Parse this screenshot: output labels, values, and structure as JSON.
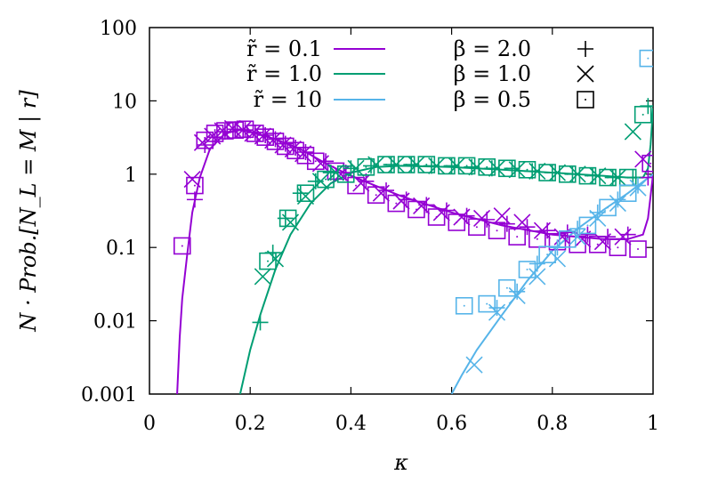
{
  "chart_data": {
    "type": "scatter",
    "xlabel": "κ",
    "ylabel": "N · Prob.[N_L = M | r]",
    "xlim": [
      0,
      1
    ],
    "ylim": [
      0.001,
      100
    ],
    "yscale": "log",
    "x_ticks": [
      "0",
      "0.2",
      "0.4",
      "0.6",
      "0.8",
      "1"
    ],
    "y_ticks": [
      "0.001",
      "0.01",
      "0.1",
      "1",
      "10",
      "100"
    ],
    "grid": false,
    "legend_placement": "top",
    "colors": {
      "r0.1": "#9400d3",
      "r1.0": "#009e73",
      "r10": "#56b4e9"
    },
    "curve_legend": [
      {
        "label": "r̃ = 0.1",
        "color": "#9400d3"
      },
      {
        "label": "r̃ = 1.0",
        "color": "#009e73"
      },
      {
        "label": "r̃ = 10",
        "color": "#56b4e9"
      }
    ],
    "marker_legend": [
      {
        "label": "β = 2.0",
        "marker": "plus"
      },
      {
        "label": "β = 1.0",
        "marker": "cross"
      },
      {
        "label": "β = 0.5",
        "marker": "square"
      }
    ],
    "curves": [
      {
        "name": "r̃ = 0.1",
        "color": "#9400d3",
        "points": [
          [
            0.055,
            0.001
          ],
          [
            0.06,
            0.006
          ],
          [
            0.065,
            0.02
          ],
          [
            0.075,
            0.08
          ],
          [
            0.085,
            0.3
          ],
          [
            0.1,
            0.9
          ],
          [
            0.12,
            2.2
          ],
          [
            0.15,
            3.6
          ],
          [
            0.18,
            4.0
          ],
          [
            0.2,
            3.8
          ],
          [
            0.25,
            3.0
          ],
          [
            0.3,
            2.2
          ],
          [
            0.35,
            1.4
          ],
          [
            0.4,
            0.95
          ],
          [
            0.5,
            0.5
          ],
          [
            0.6,
            0.3
          ],
          [
            0.7,
            0.2
          ],
          [
            0.8,
            0.15
          ],
          [
            0.9,
            0.13
          ],
          [
            0.95,
            0.13
          ],
          [
            0.98,
            0.15
          ],
          [
            0.99,
            0.25
          ],
          [
            0.995,
            0.5
          ],
          [
            1.0,
            1.0
          ]
        ]
      },
      {
        "name": "r̃ = 1.0",
        "color": "#009e73",
        "points": [
          [
            0.18,
            0.001
          ],
          [
            0.2,
            0.004
          ],
          [
            0.22,
            0.012
          ],
          [
            0.25,
            0.05
          ],
          [
            0.28,
            0.15
          ],
          [
            0.32,
            0.4
          ],
          [
            0.36,
            0.75
          ],
          [
            0.4,
            1.05
          ],
          [
            0.45,
            1.25
          ],
          [
            0.5,
            1.3
          ],
          [
            0.6,
            1.25
          ],
          [
            0.7,
            1.15
          ],
          [
            0.8,
            1.05
          ],
          [
            0.9,
            0.95
          ],
          [
            0.95,
            0.9
          ],
          [
            0.98,
            0.9
          ],
          [
            0.99,
            1.2
          ],
          [
            0.995,
            2.5
          ],
          [
            1.0,
            8.0
          ]
        ]
      },
      {
        "name": "r̃ = 10",
        "color": "#56b4e9",
        "points": [
          [
            0.6,
            0.001
          ],
          [
            0.62,
            0.0018
          ],
          [
            0.65,
            0.004
          ],
          [
            0.7,
            0.012
          ],
          [
            0.75,
            0.035
          ],
          [
            0.8,
            0.09
          ],
          [
            0.85,
            0.18
          ],
          [
            0.9,
            0.32
          ],
          [
            0.95,
            0.55
          ],
          [
            1.0,
            1.0
          ]
        ]
      }
    ],
    "series": [
      {
        "name": "r̃ = 0.1, β = 2.0",
        "color": "#9400d3",
        "marker": "plus",
        "x": [
          0.09,
          0.11,
          0.13,
          0.15,
          0.17,
          0.19,
          0.21,
          0.23,
          0.25,
          0.27,
          0.29,
          0.31,
          0.35,
          0.39,
          0.43,
          0.47,
          0.51,
          0.55,
          0.59,
          0.63,
          0.67,
          0.71,
          0.75,
          0.79,
          0.83,
          0.87,
          0.91,
          0.95,
          0.99
        ],
        "y": [
          0.45,
          2.5,
          3.2,
          3.8,
          4.1,
          4.0,
          3.7,
          3.4,
          3.0,
          2.6,
          2.3,
          2.0,
          1.5,
          1.05,
          0.8,
          0.6,
          0.45,
          0.38,
          0.32,
          0.27,
          0.24,
          0.21,
          0.19,
          0.17,
          0.16,
          0.15,
          0.14,
          0.15,
          0.9
        ]
      },
      {
        "name": "r̃ = 0.1, β = 1.0",
        "color": "#9400d3",
        "marker": "cross",
        "x": [
          0.085,
          0.105,
          0.125,
          0.145,
          0.165,
          0.185,
          0.205,
          0.225,
          0.245,
          0.265,
          0.285,
          0.305,
          0.34,
          0.38,
          0.42,
          0.46,
          0.5,
          0.54,
          0.58,
          0.62,
          0.66,
          0.7,
          0.74,
          0.78,
          0.82,
          0.86,
          0.9,
          0.94,
          0.98
        ],
        "y": [
          0.85,
          2.7,
          3.3,
          3.9,
          4.2,
          4.0,
          3.6,
          3.3,
          2.9,
          2.5,
          2.2,
          1.9,
          1.4,
          1.0,
          0.75,
          0.55,
          0.43,
          0.37,
          0.3,
          0.26,
          0.25,
          0.27,
          0.22,
          0.17,
          0.14,
          0.13,
          0.12,
          0.14,
          1.6
        ]
      },
      {
        "name": "r̃ = 0.1, β = 0.5",
        "color": "#9400d3",
        "marker": "square",
        "x": [
          0.065,
          0.09,
          0.11,
          0.13,
          0.15,
          0.17,
          0.19,
          0.21,
          0.23,
          0.25,
          0.27,
          0.29,
          0.31,
          0.33,
          0.37,
          0.41,
          0.45,
          0.49,
          0.53,
          0.57,
          0.61,
          0.65,
          0.69,
          0.73,
          0.77,
          0.81,
          0.85,
          0.89,
          0.93,
          0.97,
          0.995
        ],
        "y": [
          0.105,
          0.7,
          2.9,
          3.6,
          3.9,
          4.0,
          4.1,
          3.6,
          3.2,
          2.8,
          2.4,
          2.1,
          1.8,
          1.5,
          1.1,
          0.7,
          0.52,
          0.4,
          0.33,
          0.26,
          0.22,
          0.19,
          0.17,
          0.14,
          0.13,
          0.12,
          0.11,
          0.11,
          0.1,
          0.095,
          1.4
        ]
      },
      {
        "name": "r̃ = 1.0, β = 2.0",
        "color": "#009e73",
        "marker": "plus",
        "x": [
          0.22,
          0.245,
          0.27,
          0.3,
          0.33,
          0.36,
          0.4,
          0.44,
          0.48,
          0.52,
          0.56,
          0.6,
          0.64,
          0.68,
          0.72,
          0.76,
          0.8,
          0.84,
          0.88,
          0.92,
          0.96,
          0.99
        ],
        "y": [
          0.0095,
          0.085,
          0.25,
          0.55,
          0.8,
          1.05,
          1.2,
          1.3,
          1.35,
          1.35,
          1.3,
          1.3,
          1.25,
          1.2,
          1.2,
          1.1,
          1.05,
          1.0,
          0.95,
          0.9,
          0.9,
          8.5
        ]
      },
      {
        "name": "r̃ = 1.0, β = 1.0",
        "color": "#009e73",
        "marker": "cross",
        "x": [
          0.225,
          0.25,
          0.28,
          0.31,
          0.34,
          0.37,
          0.41,
          0.45,
          0.49,
          0.53,
          0.57,
          0.61,
          0.65,
          0.69,
          0.73,
          0.77,
          0.81,
          0.85,
          0.89,
          0.93,
          0.96
        ],
        "y": [
          0.04,
          0.07,
          0.22,
          0.5,
          0.8,
          1.05,
          1.2,
          1.35,
          1.35,
          1.35,
          1.3,
          1.3,
          1.25,
          1.2,
          1.15,
          1.1,
          1.05,
          1.0,
          0.95,
          0.9,
          3.8
        ]
      },
      {
        "name": "r̃ = 1.0, β = 0.5",
        "color": "#009e73",
        "marker": "square",
        "x": [
          0.235,
          0.275,
          0.31,
          0.35,
          0.39,
          0.43,
          0.47,
          0.51,
          0.55,
          0.59,
          0.63,
          0.67,
          0.71,
          0.75,
          0.79,
          0.83,
          0.87,
          0.91,
          0.95,
          0.98
        ],
        "y": [
          0.065,
          0.25,
          0.55,
          0.85,
          1.0,
          1.25,
          1.35,
          1.35,
          1.35,
          1.3,
          1.3,
          1.25,
          1.2,
          1.15,
          1.05,
          1.0,
          0.95,
          0.9,
          0.9,
          6.5
        ]
      },
      {
        "name": "r̃ = 10, β = 2.0",
        "color": "#56b4e9",
        "marker": "plus",
        "x": [
          0.69,
          0.73,
          0.77,
          0.81,
          0.85,
          0.89,
          0.93,
          0.97
        ],
        "y": [
          0.015,
          0.025,
          0.06,
          0.1,
          0.18,
          0.3,
          0.45,
          0.7
        ]
      },
      {
        "name": "r̃ = 10, β = 1.0",
        "color": "#56b4e9",
        "marker": "cross",
        "x": [
          0.645,
          0.69,
          0.73,
          0.77,
          0.81,
          0.85,
          0.89,
          0.93,
          0.97
        ],
        "y": [
          0.0025,
          0.013,
          0.022,
          0.04,
          0.07,
          0.14,
          0.25,
          0.4,
          0.65
        ]
      },
      {
        "name": "r̃ = 10, β = 0.5",
        "color": "#56b4e9",
        "marker": "square",
        "x": [
          0.625,
          0.67,
          0.71,
          0.75,
          0.79,
          0.83,
          0.87,
          0.91,
          0.95,
          0.99
        ],
        "y": [
          0.016,
          0.017,
          0.028,
          0.05,
          0.08,
          0.13,
          0.2,
          0.35,
          0.55,
          38
        ]
      }
    ]
  }
}
